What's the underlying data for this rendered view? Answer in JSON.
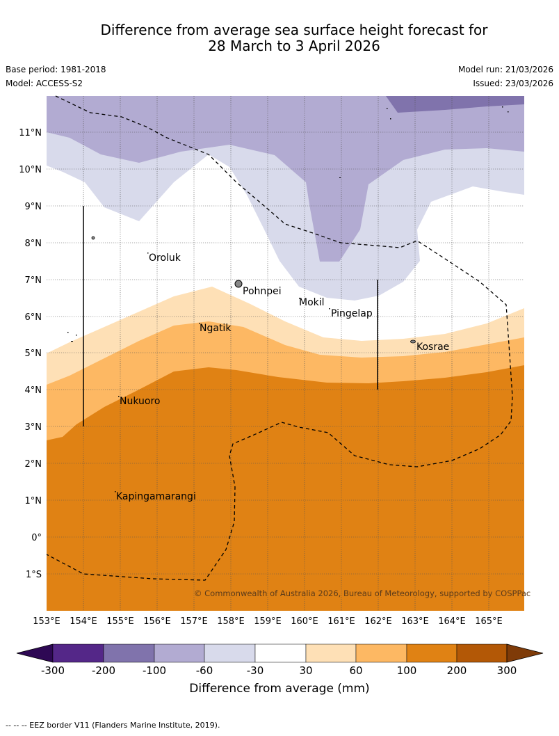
{
  "header": {
    "title_line1": "Difference from average sea surface height forecast for",
    "title_line2": "28 March to 3 April 2026",
    "base_period": "Base period: 1981-2018",
    "model": "Model: ACCESS-S2",
    "model_run": "Model run: 21/03/2026",
    "issued": "Issued: 23/03/2026"
  },
  "map": {
    "lat_labels": [
      "11°N",
      "10°N",
      "9°N",
      "8°N",
      "7°N",
      "6°N",
      "5°N",
      "4°N",
      "3°N",
      "2°N",
      "1°N",
      "0°",
      "1°S"
    ],
    "lon_labels": [
      "153°E",
      "154°E",
      "155°E",
      "156°E",
      "157°E",
      "158°E",
      "159°E",
      "160°E",
      "161°E",
      "162°E",
      "163°E",
      "164°E",
      "165°E"
    ],
    "places": [
      "Oroluk",
      "Pohnpei",
      "Mokil",
      "Pingelap",
      "Ngatik",
      "Kosrae",
      "Nukuoro",
      "Kapingamarangi"
    ],
    "copyright": "© Commonwealth of Australia 2026, Bureau of Meteorology, supported by COSPPac"
  },
  "legend": {
    "colors": [
      "#2e0854",
      "#542788",
      "#8073ac",
      "#b2abd2",
      "#d8daeb",
      "#ffffff",
      "#fee0b6",
      "#fdb863",
      "#e08214",
      "#b35806",
      "#7f3b08"
    ],
    "ticks": [
      "-300",
      "-200",
      "-100",
      "-60",
      "-30",
      "30",
      "60",
      "100",
      "200",
      "300"
    ],
    "title": "Difference from average (mm)"
  },
  "footer": {
    "eez_note": "--  --  -- EEZ border V11 (Flanders Marine Institute, 2019)."
  }
}
